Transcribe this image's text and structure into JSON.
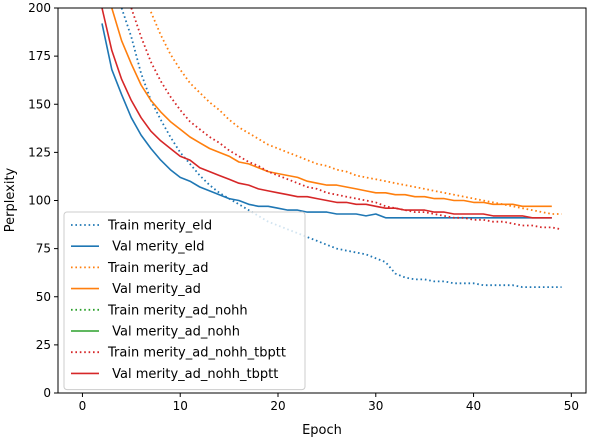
{
  "chart_data": {
    "type": "line",
    "title": "",
    "xlabel": "Epoch",
    "ylabel": "Perplexity",
    "xlim": [
      -2.5,
      51.5
    ],
    "ylim": [
      0,
      200
    ],
    "xticks": [
      0,
      10,
      20,
      30,
      40,
      50
    ],
    "yticks": [
      0,
      25,
      50,
      75,
      100,
      125,
      150,
      175,
      200
    ],
    "grid": false,
    "legend_position": "lower-left",
    "series": [
      {
        "name": "Train merity_eld",
        "color": "#1f77b4",
        "dash": "dotted",
        "x": [
          4,
          5,
          6,
          7,
          8,
          9,
          10,
          11,
          12,
          13,
          14,
          15,
          16,
          17,
          18,
          19,
          20,
          21,
          22,
          23,
          24,
          25,
          26,
          27,
          28,
          29,
          30,
          31,
          32,
          33,
          34,
          35,
          36,
          37,
          38,
          39,
          40,
          41,
          42,
          43,
          44,
          45,
          46,
          47,
          48,
          49
        ],
        "y": [
          200,
          185,
          166,
          152,
          142,
          133,
          125,
          119,
          113,
          108,
          104,
          101,
          98,
          95,
          92,
          89,
          87,
          85,
          83,
          81,
          79,
          77,
          75,
          74,
          73,
          72,
          70,
          68,
          62,
          60,
          59,
          59,
          58,
          58,
          57,
          57,
          57,
          56,
          56,
          56,
          56,
          55,
          55,
          55,
          55,
          55
        ]
      },
      {
        "name": " Val merity_eld",
        "color": "#1f77b4",
        "dash": "solid",
        "x": [
          2,
          3,
          4,
          5,
          6,
          7,
          8,
          9,
          10,
          11,
          12,
          13,
          14,
          15,
          16,
          17,
          18,
          19,
          20,
          21,
          22,
          23,
          24,
          25,
          26,
          27,
          28,
          29,
          30,
          31,
          32,
          33,
          34,
          35,
          36,
          37,
          38,
          39,
          40,
          41,
          42,
          43,
          44,
          45,
          46,
          47,
          48
        ],
        "y": [
          192,
          168,
          155,
          143,
          134,
          127,
          121,
          116,
          112,
          110,
          107,
          105,
          103,
          101,
          100,
          98,
          97,
          97,
          96,
          95,
          95,
          94,
          94,
          94,
          93,
          93,
          93,
          92,
          93,
          91,
          91,
          91,
          91,
          91,
          91,
          91,
          91,
          91,
          91,
          91,
          91,
          91,
          91,
          91,
          91,
          91,
          91
        ]
      },
      {
        "name": "Train merity_ad",
        "color": "#ff7f0e",
        "dash": "dotted",
        "x": [
          7,
          8,
          9,
          10,
          11,
          12,
          13,
          14,
          15,
          16,
          17,
          18,
          19,
          20,
          21,
          22,
          23,
          24,
          25,
          26,
          27,
          28,
          29,
          30,
          31,
          32,
          33,
          34,
          35,
          36,
          37,
          38,
          39,
          40,
          41,
          42,
          43,
          44,
          45,
          46,
          47,
          48,
          49
        ],
        "y": [
          198,
          186,
          176,
          168,
          161,
          156,
          151,
          147,
          142,
          138,
          135,
          132,
          129,
          127,
          125,
          123,
          121,
          119,
          118,
          116,
          115,
          113,
          112,
          111,
          110,
          109,
          108,
          107,
          106,
          105,
          104,
          103,
          102,
          101,
          100,
          99,
          98,
          97,
          96,
          95,
          94,
          93,
          93
        ]
      },
      {
        "name": " Val merity_ad",
        "color": "#ff7f0e",
        "dash": "solid",
        "x": [
          3,
          4,
          5,
          6,
          7,
          8,
          9,
          10,
          11,
          12,
          13,
          14,
          15,
          16,
          17,
          18,
          19,
          20,
          21,
          22,
          23,
          24,
          25,
          26,
          27,
          28,
          29,
          30,
          31,
          32,
          33,
          34,
          35,
          36,
          37,
          38,
          39,
          40,
          41,
          42,
          43,
          44,
          45,
          46,
          47,
          48
        ],
        "y": [
          200,
          183,
          171,
          160,
          152,
          146,
          141,
          137,
          133,
          130,
          127,
          125,
          123,
          120,
          119,
          117,
          115,
          114,
          113,
          112,
          110,
          109,
          108,
          108,
          107,
          106,
          105,
          104,
          104,
          103,
          103,
          102,
          102,
          101,
          101,
          100,
          100,
          99,
          99,
          98,
          98,
          98,
          97,
          97,
          97,
          97
        ]
      },
      {
        "name": "Train merity_ad_nohh",
        "color": "#2ca02c",
        "dash": "dotted",
        "x": [],
        "y": []
      },
      {
        "name": " Val merity_ad_nohh",
        "color": "#2ca02c",
        "dash": "solid",
        "x": [],
        "y": []
      },
      {
        "name": "Train merity_ad_nohh_tbptt",
        "color": "#d62728",
        "dash": "dotted",
        "x": [
          5,
          6,
          7,
          8,
          9,
          10,
          11,
          12,
          13,
          14,
          15,
          16,
          17,
          18,
          19,
          20,
          21,
          22,
          23,
          24,
          25,
          26,
          27,
          28,
          29,
          30,
          31,
          32,
          33,
          34,
          35,
          36,
          37,
          38,
          39,
          40,
          41,
          42,
          43,
          44,
          45,
          46,
          47,
          48,
          49
        ],
        "y": [
          200,
          185,
          172,
          162,
          154,
          147,
          141,
          137,
          133,
          130,
          126,
          123,
          120,
          118,
          115,
          113,
          111,
          109,
          107,
          106,
          104,
          103,
          102,
          101,
          100,
          99,
          97,
          96,
          95,
          94,
          94,
          93,
          92,
          91,
          91,
          90,
          90,
          89,
          89,
          88,
          87,
          87,
          86,
          86,
          85
        ]
      },
      {
        "name": " Val merity_ad_nohh_tbptt",
        "color": "#d62728",
        "dash": "solid",
        "x": [
          2,
          3,
          4,
          5,
          6,
          7,
          8,
          9,
          10,
          11,
          12,
          13,
          14,
          15,
          16,
          17,
          18,
          19,
          20,
          21,
          22,
          23,
          24,
          25,
          26,
          27,
          28,
          29,
          30,
          31,
          32,
          33,
          34,
          35,
          36,
          37,
          38,
          39,
          40,
          41,
          42,
          43,
          44,
          45,
          46,
          47,
          48
        ],
        "y": [
          200,
          178,
          163,
          152,
          143,
          136,
          131,
          127,
          123,
          121,
          117,
          115,
          113,
          111,
          109,
          108,
          106,
          105,
          104,
          103,
          102,
          102,
          101,
          100,
          99,
          99,
          98,
          98,
          97,
          96,
          96,
          95,
          95,
          95,
          94,
          94,
          93,
          93,
          93,
          93,
          92,
          92,
          92,
          92,
          91,
          91,
          91
        ]
      }
    ]
  }
}
